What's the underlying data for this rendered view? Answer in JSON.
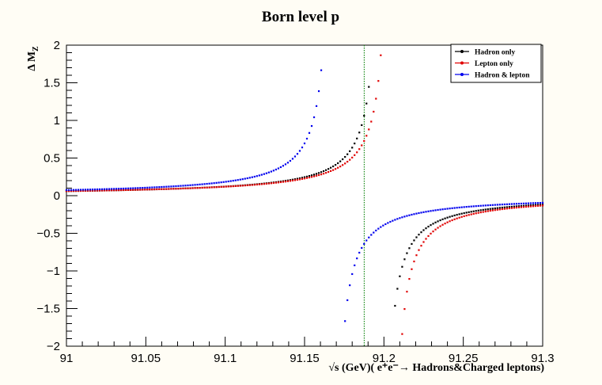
{
  "chart_data": {
    "type": "scatter",
    "title": "Born level p",
    "xlabel": "√s (GeV)( e⁺e⁻→ Hadrons&Charged leptons)",
    "ylabel": "Δ M",
    "ylabel_sub": "Z",
    "xlim": [
      91.0,
      91.3
    ],
    "ylim": [
      -2.0,
      2.0
    ],
    "x_ticks": [
      91.0,
      91.05,
      91.1,
      91.15,
      91.2,
      91.25,
      91.3
    ],
    "x_tick_labels": [
      "91",
      "91.05",
      "91.1",
      "91.15",
      "91.2",
      "91.25",
      "91.3"
    ],
    "y_ticks": [
      -2.0,
      -1.5,
      -1.0,
      -0.5,
      0.0,
      0.5,
      1.0,
      1.5,
      2.0
    ],
    "y_tick_labels": [
      "−2",
      "−1.5",
      "−1",
      "−0.5",
      "0",
      "0.5",
      "1",
      "1.5",
      "2"
    ],
    "grid": false,
    "legend_position": "top-right",
    "reference_line": {
      "x": 91.1876,
      "color": "#1a8a1a",
      "style": "dotted"
    },
    "series": [
      {
        "name": "Hadron only",
        "color": "#000000",
        "pole": 91.1988,
        "scale": 0.012,
        "x_start": 91.0,
        "x_end": 91.3,
        "step": 0.0015,
        "y_clip": 1.75
      },
      {
        "name": "Lepton only",
        "color": "#e00000",
        "pole": 91.2047,
        "scale": 0.0125,
        "x_start": 91.0,
        "x_end": 91.3,
        "step": 0.0015,
        "y_clip": 1.9
      },
      {
        "name": "Hadron & lepton",
        "color": "#0000ee",
        "pole": 91.168,
        "scale": 0.0125,
        "x_start": 91.0,
        "x_end": 91.3,
        "step": 0.0015,
        "y_clip": 1.75
      }
    ]
  }
}
